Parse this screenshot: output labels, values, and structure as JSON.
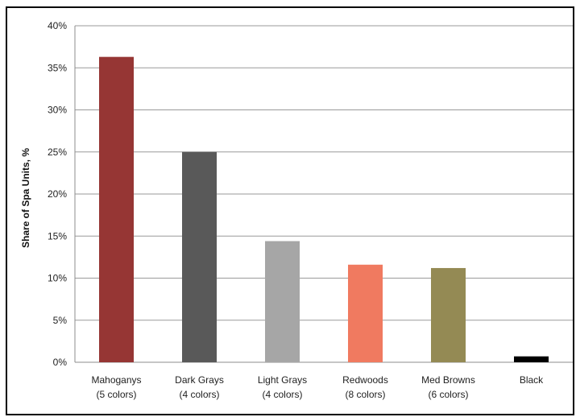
{
  "chart_data": {
    "type": "bar",
    "title": "",
    "xlabel": "",
    "ylabel": "Share of Spa Units, %",
    "ylim": [
      0,
      40
    ],
    "y_ticks": [
      "0%",
      "5%",
      "10%",
      "15%",
      "20%",
      "25%",
      "30%",
      "35%",
      "40%"
    ],
    "grid": true,
    "legend": "none",
    "categories": [
      [
        "Mahoganys",
        "(5 colors)"
      ],
      [
        "Dark Grays",
        "(4 colors)"
      ],
      [
        "Light Grays",
        "(4 colors)"
      ],
      [
        "Redwoods",
        "(8 colors)"
      ],
      [
        "Med Browns",
        "(6 colors)"
      ],
      [
        "Black",
        ""
      ]
    ],
    "values": [
      36.3,
      25.0,
      14.4,
      11.6,
      11.2,
      0.7
    ],
    "colors": [
      "#963634",
      "#595959",
      "#a6a6a6",
      "#f07a60",
      "#948a54",
      "#000000"
    ]
  }
}
